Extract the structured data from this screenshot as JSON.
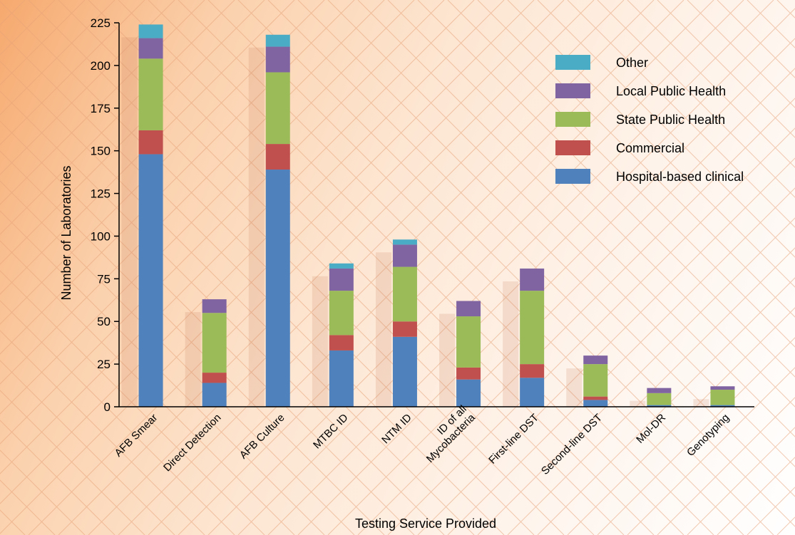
{
  "chart_data": {
    "type": "bar",
    "stacked": true,
    "title": "",
    "xlabel": "Testing Service Provided",
    "ylabel": "Number of Laboratories",
    "ylim": [
      0,
      225
    ],
    "yticks": [
      0,
      25,
      50,
      75,
      100,
      125,
      150,
      175,
      200,
      225
    ],
    "grid": false,
    "legend_position": "top-right",
    "categories": [
      [
        "AFB Smear"
      ],
      [
        "Direct Detection"
      ],
      [
        "AFB Culture"
      ],
      [
        "MTBC ID"
      ],
      [
        "NTM ID"
      ],
      [
        "ID of all",
        "Mycobacteria"
      ],
      [
        "First-line DST"
      ],
      [
        "Second-line DST"
      ],
      [
        "Mol-DR"
      ],
      [
        "Genotyping"
      ]
    ],
    "series": [
      {
        "name": "Hospital-based clinical",
        "color": "#4f81bd",
        "values": [
          148,
          14,
          139,
          33,
          41,
          16,
          17,
          4,
          1,
          1
        ]
      },
      {
        "name": "Commercial",
        "color": "#c0504d",
        "values": [
          14,
          6,
          15,
          9,
          9,
          7,
          8,
          2,
          0,
          0
        ]
      },
      {
        "name": "State Public Health",
        "color": "#9bbb59",
        "values": [
          42,
          35,
          42,
          26,
          32,
          30,
          43,
          19,
          7,
          9
        ]
      },
      {
        "name": "Local Public Health",
        "color": "#8064a2",
        "values": [
          12,
          8,
          15,
          13,
          13,
          9,
          13,
          5,
          3,
          2
        ]
      },
      {
        "name": "Other",
        "color": "#4bacc6",
        "values": [
          8,
          0,
          7,
          3,
          3,
          0,
          0,
          0,
          0,
          0
        ]
      }
    ],
    "legend_order": [
      "Other",
      "Local Public Health",
      "State Public Health",
      "Commercial",
      "Hospital-based clinical"
    ]
  }
}
